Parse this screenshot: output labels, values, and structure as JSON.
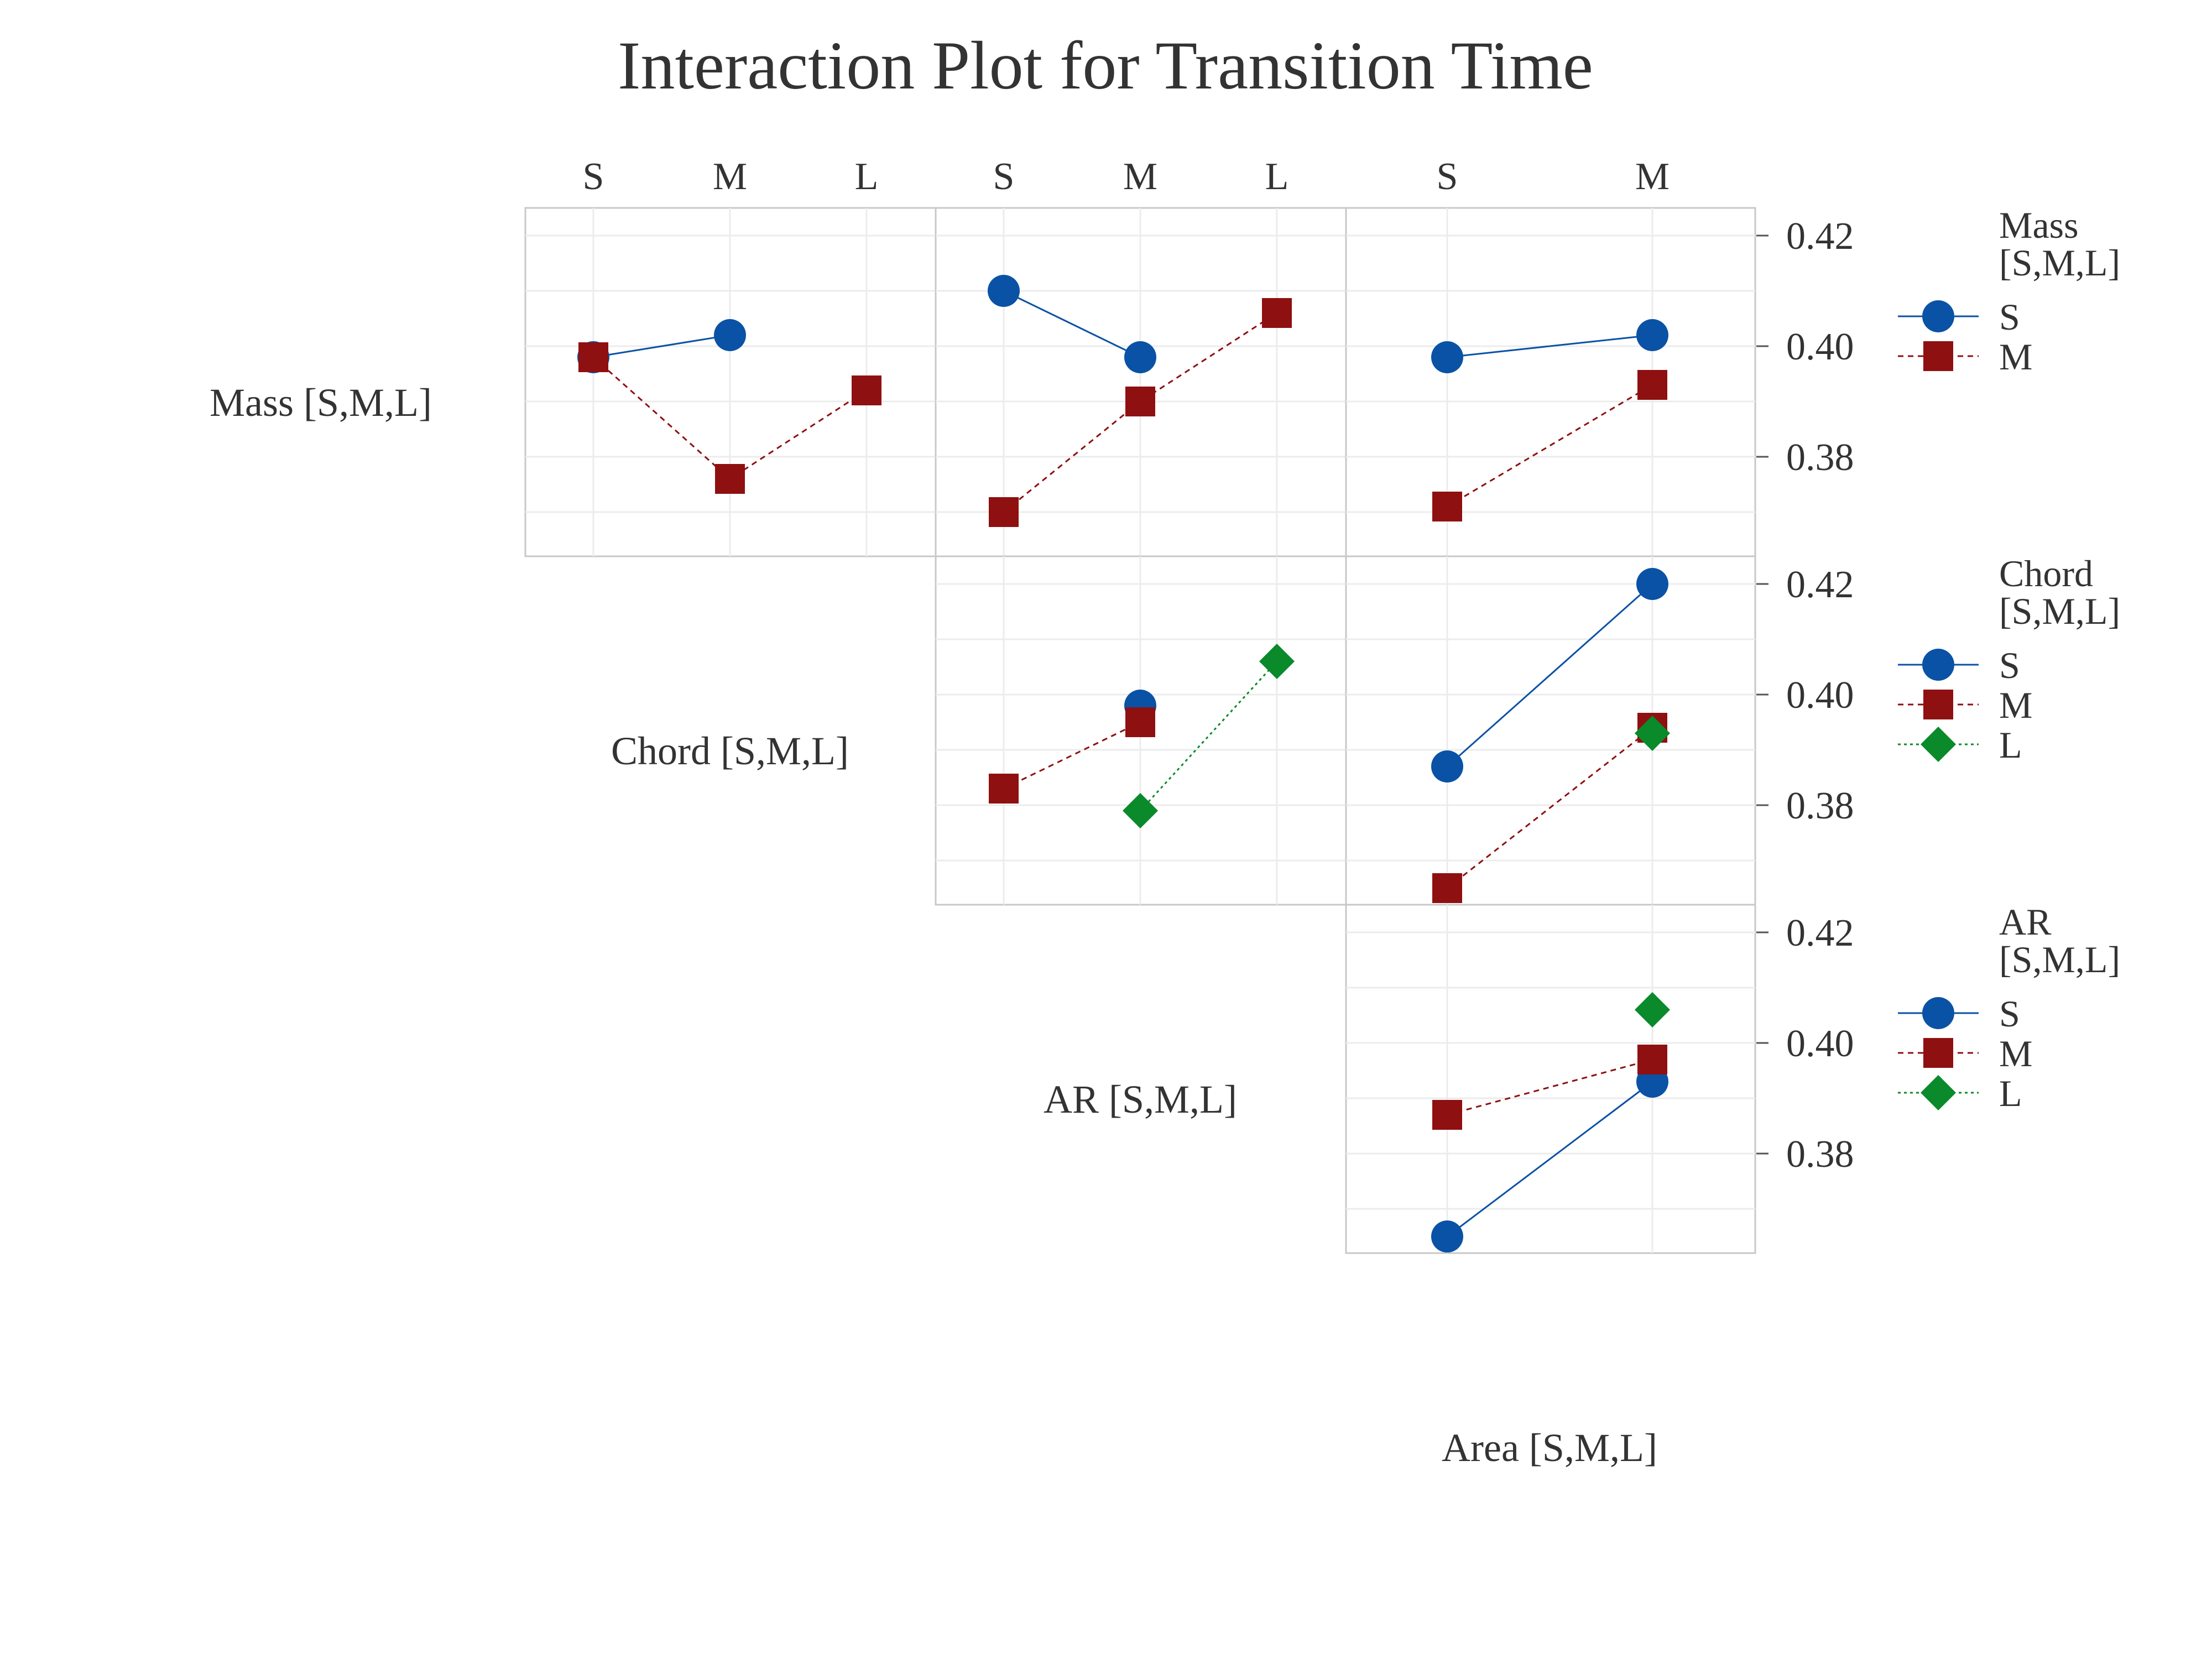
{
  "chart_data": {
    "type": "line",
    "title": "Interaction Plot for Transition Time",
    "ylim": [
      0.362,
      0.425
    ],
    "y_ticks": [
      0.38,
      0.4,
      0.42
    ],
    "y_tick_labels": [
      "0.38",
      "0.40",
      "0.42"
    ],
    "grid": true,
    "series_colors": {
      "S": "#0a52a5",
      "M": "#8f1010",
      "L": "#0a8a2a"
    },
    "series_markers": {
      "S": "circle",
      "M": "square",
      "L": "diamond"
    },
    "column_factors": [
      {
        "label": "Chord [S,M,L]",
        "levels": [
          "S",
          "M",
          "L"
        ]
      },
      {
        "label": "AR [S,M,L]",
        "levels": [
          "S",
          "M",
          "L"
        ]
      },
      {
        "label": "Area [S,M,L]",
        "levels": [
          "S",
          "M"
        ]
      }
    ],
    "row_factors": [
      {
        "label": "Mass [S,M,L]",
        "legend_title": [
          "Mass",
          "[S,M,L]"
        ],
        "legend_levels": [
          "S",
          "M"
        ]
      },
      {
        "label": "Chord [S,M,L]",
        "legend_title": [
          "Chord",
          "[S,M,L]"
        ],
        "legend_levels": [
          "S",
          "M",
          "L"
        ]
      },
      {
        "label": "AR [S,M,L]",
        "legend_title": [
          "AR",
          "[S,M,L]"
        ],
        "legend_levels": [
          "S",
          "M",
          "L"
        ]
      }
    ],
    "column_labels_shown": [
      {
        "text": "Mass [S,M,L]",
        "cell": [
          0,
          -1
        ]
      },
      {
        "text": "Chord [S,M,L]",
        "cell": [
          1,
          0
        ]
      },
      {
        "text": "AR [S,M,L]",
        "cell": [
          2,
          1
        ]
      },
      {
        "text": "Area [S,M,L]",
        "cell": [
          3,
          2
        ]
      }
    ],
    "panels": [
      {
        "row": 0,
        "col": 0,
        "series": [
          {
            "name": "S",
            "x": [
              "S",
              "M"
            ],
            "y": [
              0.398,
              0.402
            ]
          },
          {
            "name": "M",
            "x": [
              "S",
              "M",
              "L"
            ],
            "y": [
              0.398,
              0.376,
              0.392
            ]
          }
        ]
      },
      {
        "row": 0,
        "col": 1,
        "series": [
          {
            "name": "S",
            "x": [
              "S",
              "M"
            ],
            "y": [
              0.41,
              0.398
            ]
          },
          {
            "name": "M",
            "x": [
              "S",
              "M",
              "L"
            ],
            "y": [
              0.37,
              0.39,
              0.406
            ]
          }
        ]
      },
      {
        "row": 0,
        "col": 2,
        "series": [
          {
            "name": "S",
            "x": [
              "S",
              "M"
            ],
            "y": [
              0.398,
              0.402
            ]
          },
          {
            "name": "M",
            "x": [
              "S",
              "M"
            ],
            "y": [
              0.371,
              0.393
            ]
          }
        ]
      },
      {
        "row": 1,
        "col": 1,
        "series": [
          {
            "name": "S",
            "x": [
              "M"
            ],
            "y": [
              0.398
            ]
          },
          {
            "name": "M",
            "x": [
              "S",
              "M"
            ],
            "y": [
              0.383,
              0.395
            ]
          },
          {
            "name": "L",
            "x": [
              "M",
              "L"
            ],
            "y": [
              0.379,
              0.406
            ]
          }
        ]
      },
      {
        "row": 1,
        "col": 2,
        "series": [
          {
            "name": "S",
            "x": [
              "S",
              "M"
            ],
            "y": [
              0.387,
              0.42
            ]
          },
          {
            "name": "M",
            "x": [
              "S",
              "M"
            ],
            "y": [
              0.365,
              0.394
            ]
          },
          {
            "name": "L",
            "x": [
              "M"
            ],
            "y": [
              0.393
            ]
          }
        ]
      },
      {
        "row": 2,
        "col": 2,
        "series": [
          {
            "name": "S",
            "x": [
              "S",
              "M"
            ],
            "y": [
              0.365,
              0.393
            ]
          },
          {
            "name": "M",
            "x": [
              "S",
              "M"
            ],
            "y": [
              0.387,
              0.397
            ]
          },
          {
            "name": "L",
            "x": [
              "M"
            ],
            "y": [
              0.406
            ]
          }
        ]
      }
    ]
  }
}
